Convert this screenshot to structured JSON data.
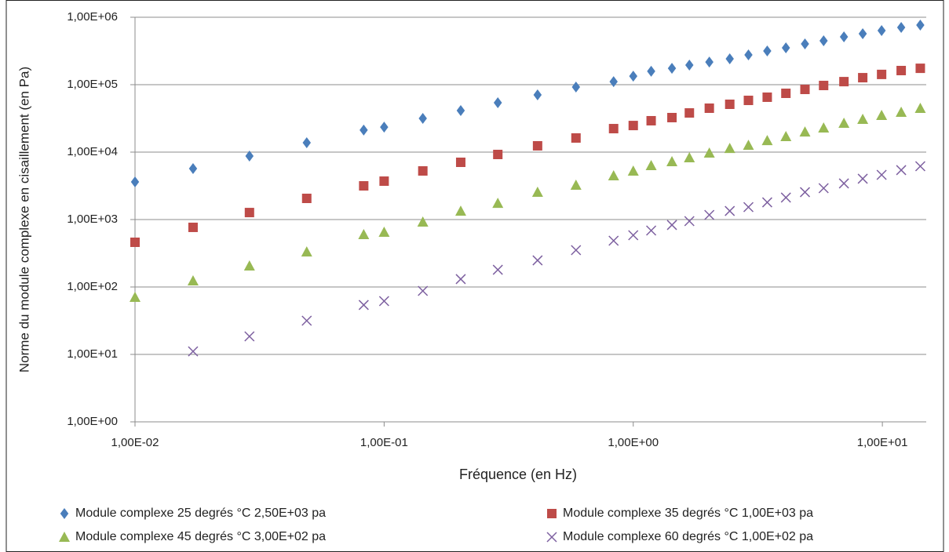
{
  "chart_data": {
    "type": "scatter",
    "xlabel": "Fréquence (en Hz)",
    "ylabel": "Norme du module complexe en cisaillement (en Pa)",
    "xscale": "log",
    "yscale": "log",
    "grid": "y",
    "legend": "bottom",
    "x": [
      0.01,
      0.0171,
      0.0288,
      0.0489,
      0.0828,
      0.1,
      0.143,
      0.203,
      0.286,
      0.413,
      0.589,
      0.834,
      1.0,
      1.18,
      1.43,
      1.68,
      2.02,
      2.44,
      2.9,
      3.45,
      4.1,
      4.89,
      5.81,
      7.01,
      8.34,
      9.93,
      11.9,
      14.2
    ],
    "xlim": [
      0.01,
      15
    ],
    "xticks": [
      {
        "value": 0.01,
        "label": "1,00E-02"
      },
      {
        "value": 0.1,
        "label": "1,00E-01"
      },
      {
        "value": 1,
        "label": "1,00E+00"
      },
      {
        "value": 10,
        "label": "1,00E+01"
      }
    ],
    "ylim": [
      1,
      1000000
    ],
    "yticks": [
      {
        "value": 1,
        "label": "1,00E+00"
      },
      {
        "value": 10,
        "label": "1,00E+01"
      },
      {
        "value": 100,
        "label": "1,00E+02"
      },
      {
        "value": 1000,
        "label": "1,00E+03"
      },
      {
        "value": 10000,
        "label": "1,00E+04"
      },
      {
        "value": 100000,
        "label": "1,00E+05"
      },
      {
        "value": 1000000,
        "label": "1,00E+06"
      }
    ],
    "series": [
      {
        "name": "Module complexe 25 degrés °C 2,50E+03 pa",
        "color": "#4a7ebb",
        "marker": "diamond",
        "values": [
          3610,
          5700,
          8750,
          13800,
          21200,
          23500,
          31600,
          41300,
          54000,
          70600,
          92300,
          111000,
          134000,
          158000,
          175000,
          195000,
          217000,
          242000,
          277000,
          316000,
          352000,
          402000,
          448000,
          512000,
          570000,
          634000,
          706000,
          765000
        ]
      },
      {
        "name": "Module complexe 35 degrés °C 1,00E+03 pa",
        "color": "#be4b48",
        "marker": "square",
        "values": [
          460,
          766,
          1270,
          2060,
          3160,
          3710,
          5260,
          7060,
          9230,
          12400,
          16200,
          22300,
          24800,
          29200,
          32500,
          38100,
          44800,
          51200,
          58500,
          65200,
          74500,
          85100,
          97300,
          111000,
          127000,
          142000,
          162000,
          175000
        ]
      },
      {
        "name": "Module complexe 45 degrés °C 3,00E+02 pa",
        "color": "#98b954",
        "marker": "triangle",
        "values": [
          70.6,
          124,
          206,
          333,
          601,
          652,
          923,
          1340,
          1750,
          2550,
          3250,
          4480,
          5260,
          6340,
          7240,
          8290,
          9730,
          11400,
          12700,
          14900,
          17100,
          20000,
          22900,
          26900,
          30800,
          35200,
          39200,
          44800
        ]
      },
      {
        "name": "Module complexe 60 degrés °C 1,00E+02 pa",
        "color": "#7d60a0",
        "marker": "x",
        "values": [
          null,
          11.1,
          18.5,
          31.6,
          54.1,
          61.8,
          87.5,
          131,
          180,
          248,
          352,
          485,
          585,
          687,
          830,
          948,
          1170,
          1340,
          1530,
          1800,
          2120,
          2550,
          2920,
          3430,
          4030,
          4600,
          5410,
          6180
        ]
      }
    ]
  }
}
